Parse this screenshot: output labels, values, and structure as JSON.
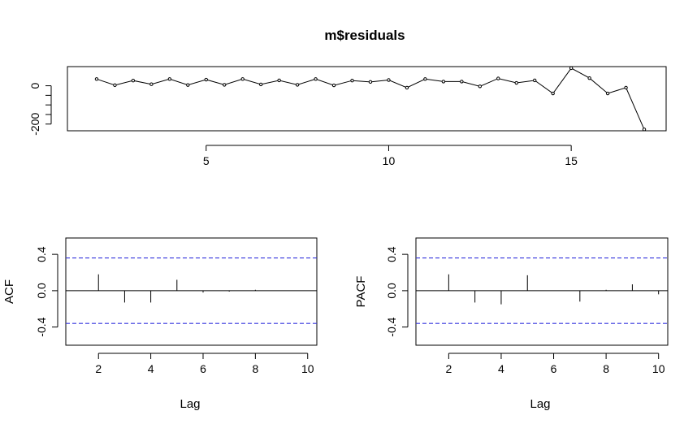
{
  "chart_data": [
    {
      "type": "line",
      "title": "m$residuals",
      "xlabel": "",
      "ylabel": "",
      "x": [
        2,
        2.5,
        3,
        3.5,
        4,
        4.5,
        5,
        5.5,
        6,
        6.5,
        7,
        7.5,
        8,
        8.5,
        9,
        9.5,
        10,
        10.5,
        11,
        11.5,
        12,
        12.5,
        13,
        13.5,
        14,
        14.5,
        15,
        15.5,
        16,
        16.5,
        17
      ],
      "values": [
        35,
        3,
        27,
        8,
        35,
        4,
        32,
        5,
        35,
        7,
        28,
        5,
        35,
        2,
        27,
        20,
        30,
        -10,
        35,
        22,
        22,
        -3,
        38,
        15,
        28,
        -40,
        92,
        40,
        -40,
        -10,
        -228
      ],
      "xticks": [
        "5",
        "10",
        "15"
      ],
      "xtick_values": [
        5,
        10,
        15
      ],
      "yticks": [
        "0",
        "-200"
      ],
      "ytick_values": [
        0,
        -200
      ],
      "xlim": [
        1.2,
        17.6
      ],
      "ylim": [
        -235,
        100
      ],
      "marker": "open-circle"
    },
    {
      "type": "bar",
      "title": "",
      "xlabel": "Lag",
      "ylabel": "ACF",
      "x": [
        2,
        3,
        4,
        5,
        6,
        7,
        8
      ],
      "values": [
        0.18,
        -0.13,
        -0.13,
        0.12,
        -0.02,
        -0.01,
        0.01
      ],
      "confidence_bounds": [
        0.36,
        -0.36
      ],
      "xticks": [
        "2",
        "4",
        "6",
        "8",
        "10"
      ],
      "xtick_values": [
        2,
        4,
        6,
        8,
        10
      ],
      "yticks": [
        "-0.4",
        "0.0",
        "0.4"
      ],
      "ytick_values": [
        -0.4,
        0.0,
        0.4
      ],
      "xlim": [
        0.75,
        10.35
      ],
      "ylim": [
        -0.6,
        0.58
      ]
    },
    {
      "type": "bar",
      "title": "",
      "xlabel": "Lag",
      "ylabel": "PACF",
      "x": [
        2,
        3,
        4,
        5,
        6,
        7,
        8,
        9,
        10
      ],
      "values": [
        0.18,
        -0.13,
        -0.15,
        0.17,
        0.0,
        -0.12,
        0.01,
        0.07,
        -0.04
      ],
      "confidence_bounds": [
        0.36,
        -0.36
      ],
      "xticks": [
        "2",
        "4",
        "6",
        "8",
        "10"
      ],
      "xtick_values": [
        2,
        4,
        6,
        8,
        10
      ],
      "yticks": [
        "-0.4",
        "0.0",
        "0.4"
      ],
      "ytick_values": [
        -0.4,
        0.0,
        0.4
      ],
      "xlim": [
        0.75,
        10.35
      ],
      "ylim": [
        -0.6,
        0.58
      ]
    }
  ]
}
